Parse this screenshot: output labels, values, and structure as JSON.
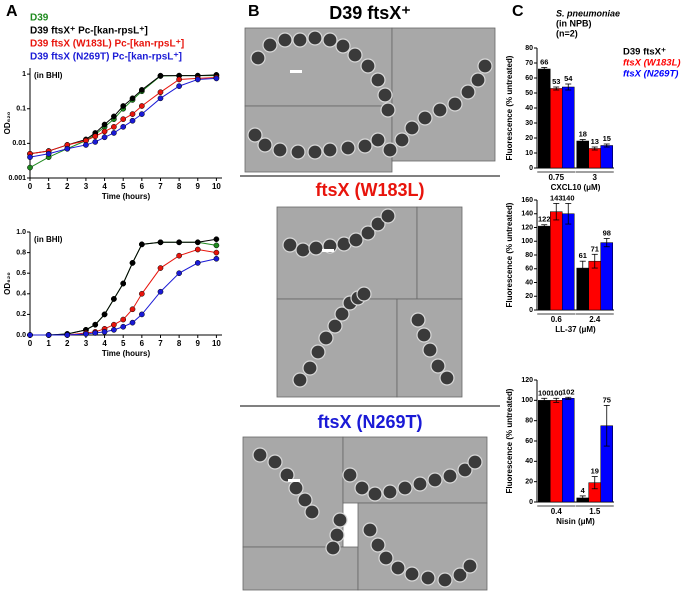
{
  "panel_labels": [
    "A",
    "B",
    "C"
  ],
  "micrographs": [
    {
      "title": "D39 ftsX⁺",
      "color": "#000000"
    },
    {
      "title": "ftsX (W183L)",
      "color": "#e8140c"
    },
    {
      "title": "ftsX (N269T)",
      "color": "#1a1ad6"
    }
  ],
  "chart_data": [
    {
      "type": "line",
      "log_y": true,
      "annotation": "(in BHI)",
      "xlabel": "Time (hours)",
      "ylabel": "OD₆₂₀",
      "x": [
        0,
        1,
        2,
        3,
        3.5,
        4,
        4.5,
        5,
        5.5,
        6,
        7,
        8,
        9,
        10
      ],
      "xlim": [
        0,
        10.3
      ],
      "xticks": [
        0,
        1,
        2,
        3,
        4,
        5,
        6,
        7,
        8,
        9,
        10
      ],
      "ylim": [
        0.001,
        1.5
      ],
      "yticks": [
        0.001,
        0.01,
        0.1,
        1
      ],
      "series": [
        {
          "name": "D39",
          "color": "#1e8a1e",
          "values": [
            0.002,
            0.004,
            0.007,
            0.012,
            0.018,
            0.03,
            0.05,
            0.1,
            0.18,
            0.32,
            0.88,
            0.9,
            0.9,
            0.9
          ]
        },
        {
          "name": "D39 ftsX⁺ Pᴄ-[kan-rpsL⁺]",
          "color": "#000000",
          "values": [
            0.005,
            0.006,
            0.009,
            0.013,
            0.02,
            0.035,
            0.06,
            0.12,
            0.2,
            0.35,
            0.9,
            0.9,
            0.9,
            0.95
          ]
        },
        {
          "name": "D39 ftsX (W183L) Pᴄ-[kan-rpsL⁺]",
          "color": "#e8140c",
          "values": [
            0.005,
            0.006,
            0.009,
            0.012,
            0.016,
            0.022,
            0.03,
            0.05,
            0.07,
            0.12,
            0.3,
            0.7,
            0.75,
            0.8
          ]
        },
        {
          "name": "D39 ftsX (N269T) Pᴄ-[kan-rpsL⁺]",
          "color": "#1a1ad6",
          "values": [
            0.004,
            0.005,
            0.007,
            0.009,
            0.011,
            0.015,
            0.02,
            0.03,
            0.045,
            0.07,
            0.2,
            0.45,
            0.7,
            0.75
          ]
        }
      ]
    },
    {
      "type": "line",
      "log_y": false,
      "annotation": "(in BHI)",
      "xlabel": "Time (hours)",
      "ylabel": "OD₆₂₀",
      "x": [
        0,
        1,
        2,
        3,
        3.5,
        4,
        4.5,
        5,
        5.5,
        6,
        7,
        8,
        9,
        10
      ],
      "xlim": [
        0,
        10.3
      ],
      "xticks": [
        0,
        1,
        2,
        3,
        4,
        5,
        6,
        7,
        8,
        9,
        10
      ],
      "ylim": [
        0,
        1
      ],
      "yticks": [
        {
          "value": 0,
          "label": "0.0"
        },
        0.2,
        0.4,
        0.6,
        0.8,
        {
          "value": 1,
          "label": "1.0"
        }
      ],
      "series": [
        {
          "color": "#1e8a1e",
          "values": [
            0,
            0,
            0.01,
            0.05,
            0.1,
            0.2,
            0.35,
            0.5,
            0.7,
            0.88,
            0.9,
            0.9,
            0.9,
            0.87
          ]
        },
        {
          "color": "#000000",
          "values": [
            0,
            0,
            0.01,
            0.05,
            0.1,
            0.2,
            0.35,
            0.5,
            0.7,
            0.88,
            0.9,
            0.9,
            0.9,
            0.93
          ]
        },
        {
          "color": "#e8140c",
          "values": [
            0,
            0,
            0,
            0.02,
            0.03,
            0.06,
            0.1,
            0.15,
            0.25,
            0.4,
            0.65,
            0.77,
            0.83,
            0.8
          ]
        },
        {
          "color": "#1a1ad6",
          "values": [
            0,
            0,
            0,
            0.01,
            0.02,
            0.03,
            0.05,
            0.08,
            0.12,
            0.2,
            0.42,
            0.6,
            0.7,
            0.74
          ]
        }
      ]
    },
    {
      "type": "bar",
      "annotation": [
        "S. pneumoniae",
        "(in NPB)",
        "(n=2)"
      ],
      "xlabel": "CXCL10 (μM)",
      "ylabel": "Fluorescence (% untreated)",
      "categories": [
        "0.75",
        "3"
      ],
      "ylim": [
        0,
        80
      ],
      "yticks": [
        0,
        10,
        20,
        30,
        40,
        50,
        60,
        70,
        80
      ],
      "series": [
        {
          "name": "D39 ftsX⁺",
          "color": "#000000",
          "values": [
            66,
            18
          ],
          "errors": [
            1,
            1
          ]
        },
        {
          "name": "ftsX (W183L)",
          "color": "#ff0000",
          "values": [
            53,
            13
          ],
          "errors": [
            1,
            1
          ]
        },
        {
          "name": "ftsX (N269T)",
          "color": "#0000ff",
          "values": [
            54,
            15
          ],
          "errors": [
            2,
            1
          ]
        }
      ]
    },
    {
      "type": "bar",
      "xlabel": "LL-37 (μM)",
      "ylabel": "Fluorescence (% untreated)",
      "categories": [
        "0.6",
        "2.4"
      ],
      "ylim": [
        0,
        160
      ],
      "yticks": [
        0,
        20,
        40,
        60,
        80,
        100,
        120,
        140,
        160
      ],
      "series": [
        {
          "color": "#000000",
          "values": [
            122,
            61
          ],
          "errors": [
            2,
            10
          ]
        },
        {
          "color": "#ff0000",
          "values": [
            143,
            71
          ],
          "errors": [
            12,
            10
          ]
        },
        {
          "color": "#0000ff",
          "values": [
            140,
            98
          ],
          "errors": [
            15,
            6
          ]
        }
      ]
    },
    {
      "type": "bar",
      "xlabel": "Nisin (μM)",
      "ylabel": "Fluorescence (% untreated)",
      "categories": [
        "0.4",
        "1.5"
      ],
      "ylim": [
        0,
        120
      ],
      "yticks": [
        0,
        20,
        40,
        60,
        80,
        100,
        120
      ],
      "series": [
        {
          "color": "#000000",
          "values": [
            100,
            4
          ],
          "errors": [
            2,
            2
          ]
        },
        {
          "color": "#ff0000",
          "values": [
            100,
            19
          ],
          "errors": [
            2,
            6
          ]
        },
        {
          "color": "#0000ff",
          "values": [
            102,
            75
          ],
          "errors": [
            1,
            20
          ]
        }
      ]
    }
  ]
}
